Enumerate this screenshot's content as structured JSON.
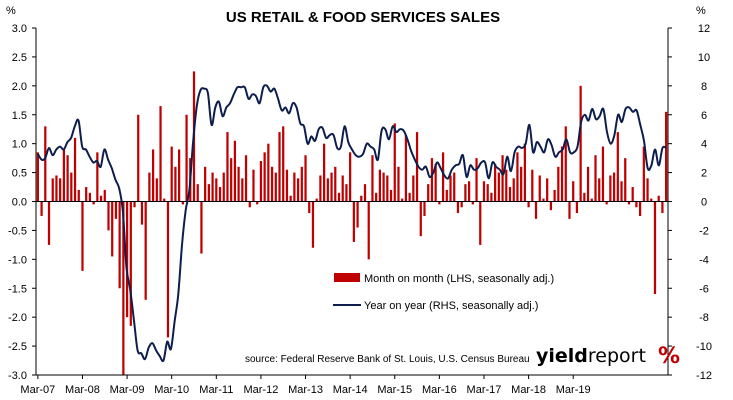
{
  "chart_data": {
    "type": "bar+line",
    "title": "US RETAIL & FOOD SERVICES SALES",
    "left_unit": "%",
    "right_unit": "%",
    "left_axis": {
      "min": -3.0,
      "max": 3.0,
      "step": 0.5,
      "tick_labels": [
        "-3.0",
        "-2.5",
        "-2.0",
        "-1.5",
        "-1.0",
        "-0.5",
        "0.0",
        "0.5",
        "1.0",
        "1.5",
        "2.0",
        "2.5",
        "3.0"
      ]
    },
    "right_axis": {
      "min": -12,
      "max": 12,
      "step": 2,
      "tick_labels": [
        "-12",
        "-10",
        "-8",
        "-6",
        "-4",
        "-2",
        "0",
        "2",
        "4",
        "6",
        "8",
        "10",
        "12"
      ]
    },
    "x_tick_labels": [
      "Mar-07",
      "Mar-08",
      "Mar-09",
      "Mar-10",
      "Mar-11",
      "Mar-12",
      "Mar-13",
      "Mar-14",
      "Mar-15",
      "Mar-16",
      "Mar-17",
      "Mar-18",
      "Mar-19"
    ],
    "x_start": "Mar-07",
    "grid": false,
    "legend_position": "center-right",
    "series": [
      {
        "name": "Month on month (LHS, seasonally adj.)",
        "type": "bar",
        "axis": "left",
        "color": "#c00000",
        "values": [
          0.85,
          -0.25,
          1.3,
          -0.75,
          0.4,
          0.45,
          0.4,
          0.9,
          0.8,
          0.5,
          1.1,
          0.2,
          -1.2,
          0.25,
          0.15,
          -0.05,
          0.85,
          0.1,
          0.2,
          -0.5,
          -0.95,
          -0.3,
          -1.5,
          -3.0,
          -2.0,
          -2.15,
          -0.1,
          1.5,
          -0.4,
          -1.7,
          0.5,
          0.9,
          0.4,
          1.65,
          0.05,
          -2.35,
          0.95,
          0.6,
          0.9,
          -0.05,
          1.5,
          0.75,
          2.25,
          0.3,
          -0.9,
          0.6,
          0.3,
          0.5,
          0.4,
          0.25,
          0.5,
          1.2,
          0.75,
          1.05,
          0.6,
          0.4,
          0.8,
          -0.1,
          0.55,
          -0.05,
          0.7,
          0.85,
          1.0,
          0.6,
          0.5,
          1.2,
          1.3,
          0.55,
          0.1,
          0.5,
          0.4,
          0.6,
          0.8,
          -0.2,
          -0.8,
          0.05,
          0.45,
          1.0,
          0.4,
          0.5,
          0.6,
          0.15,
          0.45,
          0.3,
          0.85,
          -0.7,
          -0.45,
          0.1,
          0.3,
          -1.0,
          0.8,
          0.15,
          0.55,
          0.5,
          0.45,
          0.2,
          1.35,
          0.6,
          0.05,
          1.15,
          0.15,
          0.45,
          1.2,
          -0.6,
          -0.25,
          0.3,
          0.75,
          0.65,
          -0.05,
          0.85,
          0.2,
          0.45,
          0.5,
          -0.2,
          -0.1,
          0.3,
          0.35,
          -0.05,
          0.75,
          -0.75,
          0.35,
          0.3,
          0.15,
          0.65,
          0.5,
          0.8,
          0.55,
          0.25,
          0.4,
          0.85,
          0.6,
          1.0,
          -0.1,
          0.55,
          -0.3,
          0.45,
          0.05,
          0.4,
          -0.15,
          0.2,
          0.6,
          0.95,
          1.3,
          -0.3,
          0.35,
          -0.2,
          2.0,
          0.15,
          0.6,
          0.05,
          0.8,
          0.4,
          0.95,
          -0.05,
          0.45,
          0.5,
          1.2,
          0.35,
          0.75,
          -0.05,
          0.25,
          -0.1,
          -0.25,
          0.95,
          0.4,
          0.05,
          -1.6,
          0.1,
          -0.2,
          1.55
        ]
      },
      {
        "name": "Year on year (RHS, seasonally adj.)",
        "type": "line",
        "axis": "right",
        "color": "#0d1e4d",
        "values": [
          3.3,
          2.9,
          3.0,
          3.7,
          3.2,
          3.6,
          3.8,
          3.6,
          4.1,
          4.4,
          5.2,
          5.6,
          3.8,
          3.6,
          3.1,
          2.7,
          2.8,
          2.4,
          3.6,
          2.9,
          2.3,
          1.5,
          0.9,
          -0.7,
          -4.6,
          -6.1,
          -8.2,
          -10.3,
          -10.5,
          -10.9,
          -10.1,
          -9.8,
          -10.3,
          -10.7,
          -11.0,
          -9.7,
          -10.2,
          -8.3,
          -6.4,
          -3.0,
          -0.6,
          0.8,
          4.1,
          6.6,
          7.7,
          7.8,
          7.5,
          5.3,
          6.5,
          6.9,
          5.9,
          6.5,
          6.8,
          7.4,
          7.9,
          7.9,
          7.9,
          7.1,
          7.4,
          7.3,
          6.8,
          7.9,
          8.0,
          7.6,
          7.8,
          7.1,
          6.3,
          6.5,
          6.1,
          6.8,
          6.5,
          5.4,
          5.2,
          4.0,
          4.5,
          4.2,
          5.0,
          5.1,
          4.4,
          4.6,
          4.6,
          3.7,
          3.8,
          5.2,
          4.1,
          3.6,
          3.2,
          3.1,
          3.3,
          4.0,
          3.8,
          3.6,
          2.9,
          4.9,
          5.0,
          4.3,
          5.2,
          4.8,
          5.0,
          4.9,
          4.3,
          3.5,
          2.9,
          2.4,
          2.2,
          2.4,
          1.7,
          2.0,
          2.7,
          2.3,
          1.8,
          1.6,
          2.2,
          2.5,
          2.6,
          3.2,
          1.7,
          2.5,
          2.2,
          2.3,
          2.7,
          2.7,
          1.6,
          2.7,
          2.4,
          2.2,
          1.9,
          3.1,
          2.1,
          3.4,
          3.8,
          3.7,
          4.0,
          5.3,
          3.4,
          4.1,
          3.8,
          3.4,
          4.3,
          3.9,
          3.1,
          3.4,
          3.6,
          4.3,
          3.4,
          3.4,
          3.8,
          5.5,
          6.0,
          5.6,
          6.4,
          5.7,
          5.9,
          6.4,
          4.8,
          4.0,
          4.6,
          6.0,
          5.5,
          6.4,
          6.5,
          6.2,
          6.3,
          5.3,
          4.2,
          2.3,
          2.5,
          3.6,
          2.5,
          3.7,
          3.7
        ]
      }
    ],
    "source": "source: Federal Reserve Bank of St. Louis, U.S. Census Bureau",
    "brand": {
      "bold": "yield",
      "light": "report",
      "symbol": "%",
      "symbol_color": "#c00000"
    }
  }
}
